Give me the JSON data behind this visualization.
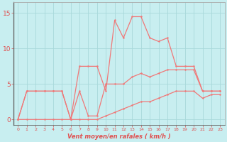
{
  "x": [
    0,
    1,
    2,
    3,
    4,
    5,
    6,
    7,
    8,
    9,
    10,
    11,
    12,
    13,
    14,
    15,
    16,
    17,
    18,
    19,
    20,
    21,
    22,
    23
  ],
  "wind_gust": [
    0,
    4,
    4,
    4,
    4,
    4,
    0,
    7.5,
    7.5,
    7.5,
    4,
    14,
    11.5,
    14.5,
    14.5,
    11.5,
    11,
    11.5,
    7.5,
    7.5,
    7.5,
    4,
    4,
    4
  ],
  "wind_avg": [
    0,
    4,
    4,
    4,
    4,
    4,
    0,
    4,
    0.5,
    0.5,
    5,
    5,
    5,
    6,
    6.5,
    6,
    6.5,
    7,
    7,
    7,
    7,
    4,
    4,
    4
  ],
  "wind_min": [
    0,
    0,
    0,
    0,
    0,
    0,
    0,
    0,
    0,
    0,
    0.5,
    1,
    1.5,
    2,
    2.5,
    2.5,
    3,
    3.5,
    4,
    4,
    4,
    3,
    3.5,
    3.5
  ],
  "line_color": "#f07878",
  "bg_color": "#c8eef0",
  "grid_color": "#a8d8da",
  "xlabel": "Vent moyen/en rafales ( km/h )",
  "yticks": [
    0,
    5,
    10,
    15
  ],
  "ylim": [
    -0.8,
    16.5
  ],
  "xlim": [
    -0.5,
    23.5
  ],
  "tick_color": "#e05050",
  "spine_color": "#aaaaaa",
  "figsize": [
    3.2,
    2.0
  ],
  "dpi": 100
}
